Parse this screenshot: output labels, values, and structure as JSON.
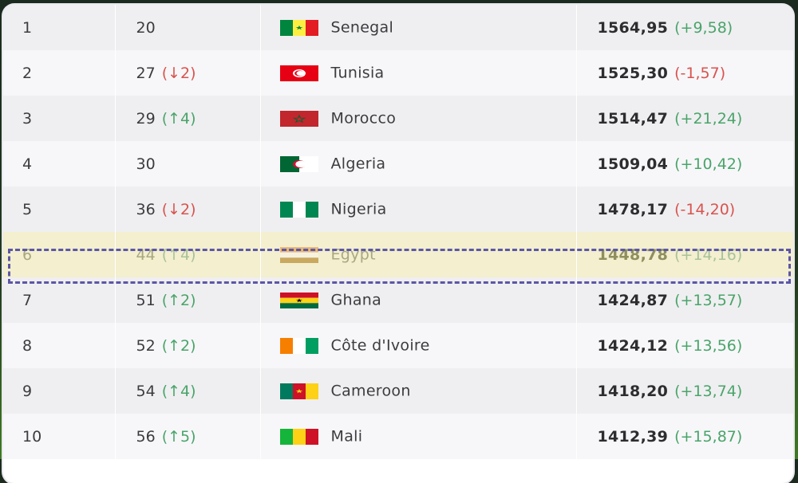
{
  "rows": [
    {
      "pos": "1",
      "fifa": "20",
      "change": "",
      "dir": "",
      "team": "Senegal",
      "flag": "senegal",
      "points": "1564,95",
      "delta": "(+9,58)",
      "ddir": "up",
      "highlight": false
    },
    {
      "pos": "2",
      "fifa": "27",
      "change": "(↓2)",
      "dir": "down",
      "team": "Tunisia",
      "flag": "tunisia",
      "points": "1525,30",
      "delta": "(-1,57)",
      "ddir": "down",
      "highlight": false
    },
    {
      "pos": "3",
      "fifa": "29",
      "change": "(↑4)",
      "dir": "up",
      "team": "Morocco",
      "flag": "morocco",
      "points": "1514,47",
      "delta": "(+21,24)",
      "ddir": "up",
      "highlight": false
    },
    {
      "pos": "4",
      "fifa": "30",
      "change": "",
      "dir": "",
      "team": "Algeria",
      "flag": "algeria",
      "points": "1509,04",
      "delta": "(+10,42)",
      "ddir": "up",
      "highlight": false
    },
    {
      "pos": "5",
      "fifa": "36",
      "change": "(↓2)",
      "dir": "down",
      "team": "Nigeria",
      "flag": "nigeria",
      "points": "1478,17",
      "delta": "(-14,20)",
      "ddir": "down",
      "highlight": false
    },
    {
      "pos": "6",
      "fifa": "44",
      "change": "(↑4)",
      "dir": "up",
      "team": "Egypt",
      "flag": "egypt",
      "points": "1448,78",
      "delta": "(+14,16)",
      "ddir": "up",
      "highlight": true
    },
    {
      "pos": "7",
      "fifa": "51",
      "change": "(↑2)",
      "dir": "up",
      "team": "Ghana",
      "flag": "ghana",
      "points": "1424,87",
      "delta": "(+13,57)",
      "ddir": "up",
      "highlight": false
    },
    {
      "pos": "8",
      "fifa": "52",
      "change": "(↑2)",
      "dir": "up",
      "team": "Côte d'Ivoire",
      "flag": "ivorycoast",
      "points": "1424,12",
      "delta": "(+13,56)",
      "ddir": "up",
      "highlight": false
    },
    {
      "pos": "9",
      "fifa": "54",
      "change": "(↑4)",
      "dir": "up",
      "team": "Cameroon",
      "flag": "cameroon",
      "points": "1418,20",
      "delta": "(+13,74)",
      "ddir": "up",
      "highlight": false
    },
    {
      "pos": "10",
      "fifa": "56",
      "change": "(↑5)",
      "dir": "up",
      "team": "Mali",
      "flag": "mali",
      "points": "1412,39",
      "delta": "(+15,87)",
      "ddir": "up",
      "highlight": false
    }
  ],
  "colors": {
    "up": "#4aa46a",
    "down": "#d9534f",
    "highlight_border": "#5c56a6",
    "highlight_fill": "#f3efcf"
  }
}
